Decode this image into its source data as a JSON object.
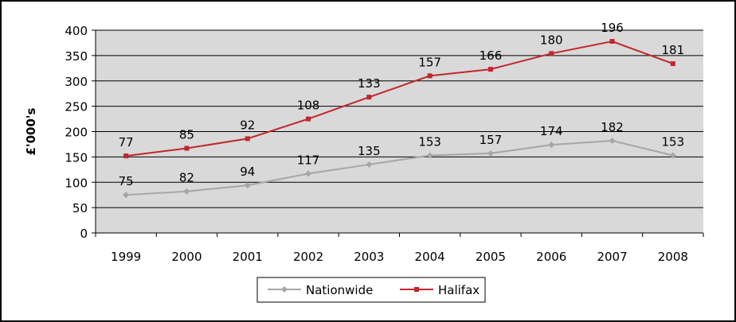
{
  "chart_data": {
    "type": "line",
    "stacked": true,
    "title": "",
    "xlabel": "",
    "ylabel": "£'000's",
    "ylim": [
      0,
      400
    ],
    "yticks": [
      0,
      50,
      100,
      150,
      200,
      250,
      300,
      350,
      400
    ],
    "grid": true,
    "legend_position": "bottom",
    "categories": [
      "1999",
      "2000",
      "2001",
      "2002",
      "2003",
      "2004",
      "2005",
      "2006",
      "2007",
      "2008"
    ],
    "series": [
      {
        "name": "Nationwide",
        "color": "#a6a6a6",
        "marker": "diamond",
        "values": [
          75,
          82,
          94,
          117,
          135,
          153,
          157,
          174,
          182,
          153
        ]
      },
      {
        "name": "Halifax",
        "color": "#c0272d",
        "marker": "square",
        "values": [
          77,
          85,
          92,
          108,
          133,
          157,
          166,
          180,
          196,
          181
        ]
      }
    ]
  },
  "colors": {
    "plot_bg": "#d9d9d9",
    "grid": "#000000"
  }
}
